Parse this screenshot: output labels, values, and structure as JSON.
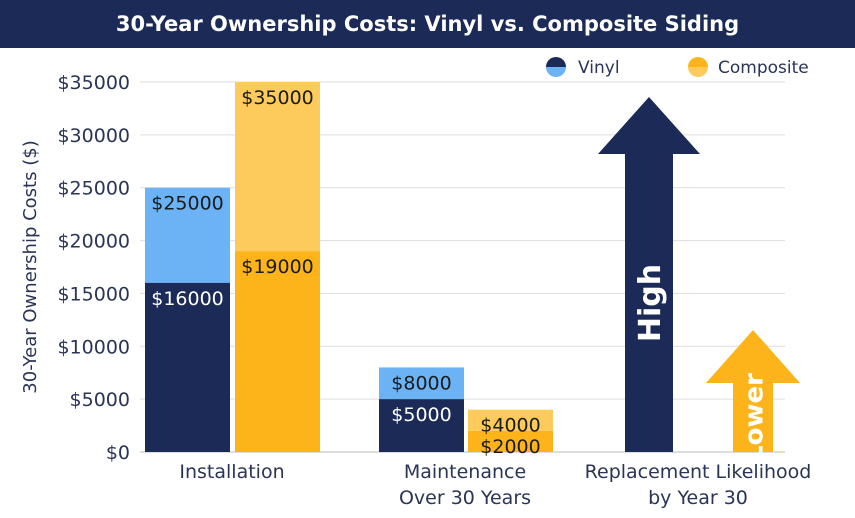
{
  "chart_data": {
    "type": "bar",
    "title": "30-Year Ownership Costs: Vinyl vs. Composite Siding",
    "ylabel": "30-Year Ownership Costs ($)",
    "ylim": [
      0,
      35000
    ],
    "yticks": [
      "$0",
      "$5000",
      "$10000",
      "$15000",
      "$20000",
      "$25000",
      "$30000",
      "$35000"
    ],
    "grid": true,
    "legend_position": "top-right",
    "categories": [
      "Installation",
      "Maintenance\nOver 30 Years",
      "Replacement Likelihood\nby Year 30"
    ],
    "series": [
      {
        "name": "Vinyl",
        "color_low": "#1b2a57",
        "color_high": "#6bb3f5",
        "ranges": [
          [
            16000,
            25000
          ],
          [
            5000,
            8000
          ]
        ],
        "labels": [
          [
            "$16000",
            "$25000"
          ],
          [
            "$5000",
            "$8000"
          ]
        ]
      },
      {
        "name": "Composite",
        "color_low": "#fdb41a",
        "color_high": "#fccb5c",
        "ranges": [
          [
            19000,
            35000
          ],
          [
            2000,
            4000
          ]
        ],
        "labels": [
          [
            "$19000",
            "$35000"
          ],
          [
            "$2000",
            "$4000"
          ]
        ]
      }
    ],
    "replacement_arrows": [
      {
        "series": "Vinyl",
        "label": "High",
        "color": "#1b2a57"
      },
      {
        "series": "Composite",
        "label": "Lower",
        "color": "#fdb41a"
      }
    ]
  }
}
